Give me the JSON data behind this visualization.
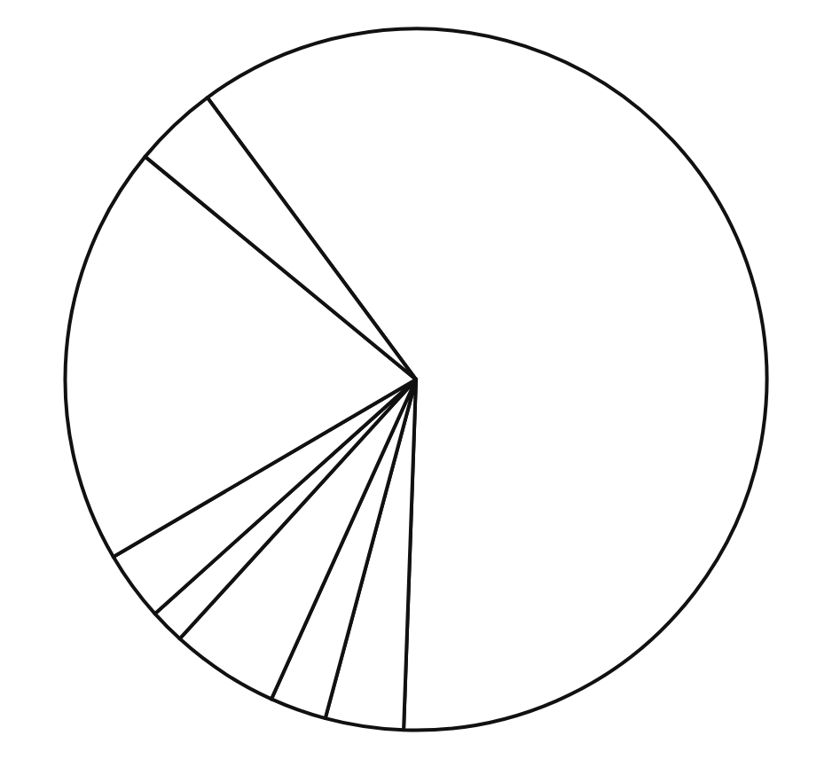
{
  "chart_data": {
    "type": "pie",
    "categories": [
      null,
      null,
      null,
      null,
      null,
      null,
      null,
      null
    ],
    "values": [
      60.7,
      3.6,
      2.6,
      5.0,
      1.6,
      3.2,
      19.4,
      3.9
    ],
    "colors": [
      "#ffffff",
      "#ffffff",
      "#ffffff",
      "#ffffff",
      "#ffffff",
      "#ffffff",
      "#ffffff",
      "#ffffff"
    ]
  }
}
